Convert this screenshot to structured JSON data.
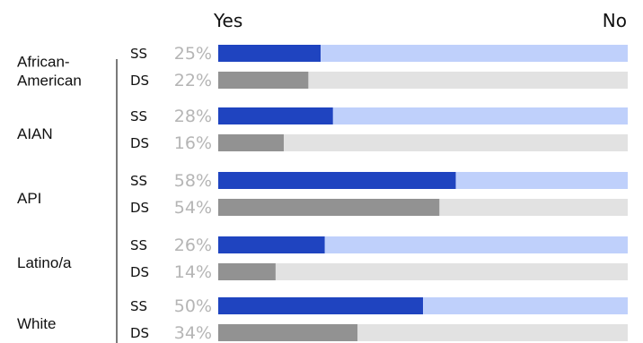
{
  "chart_data": {
    "type": "bar",
    "orientation": "horizontal",
    "stacked_to_100": true,
    "header": {
      "left": "Yes",
      "right": "No"
    },
    "series": [
      {
        "name": "SS",
        "colors": {
          "yes": "#1f44c0",
          "no": "#bfd0fb"
        }
      },
      {
        "name": "DS",
        "colors": {
          "yes": "#929292",
          "no": "#e2e2e2"
        }
      }
    ],
    "groups": [
      {
        "name": "African-\nAmerican",
        "rows": [
          {
            "series": "SS",
            "yes": 25,
            "label": "25%"
          },
          {
            "series": "DS",
            "yes": 22,
            "label": "22%"
          }
        ]
      },
      {
        "name": "AIAN",
        "rows": [
          {
            "series": "SS",
            "yes": 28,
            "label": "28%"
          },
          {
            "series": "DS",
            "yes": 16,
            "label": "16%"
          }
        ]
      },
      {
        "name": "API",
        "rows": [
          {
            "series": "SS",
            "yes": 58,
            "label": "58%"
          },
          {
            "series": "DS",
            "yes": 54,
            "label": "54%"
          }
        ]
      },
      {
        "name": "Latino/a",
        "rows": [
          {
            "series": "SS",
            "yes": 26,
            "label": "26%"
          },
          {
            "series": "DS",
            "yes": 14,
            "label": "14%"
          }
        ]
      },
      {
        "name": "White",
        "rows": [
          {
            "series": "SS",
            "yes": 50,
            "label": "50%"
          },
          {
            "series": "DS",
            "yes": 34,
            "label": "34%"
          }
        ]
      }
    ],
    "xlim": [
      0,
      100
    ]
  }
}
